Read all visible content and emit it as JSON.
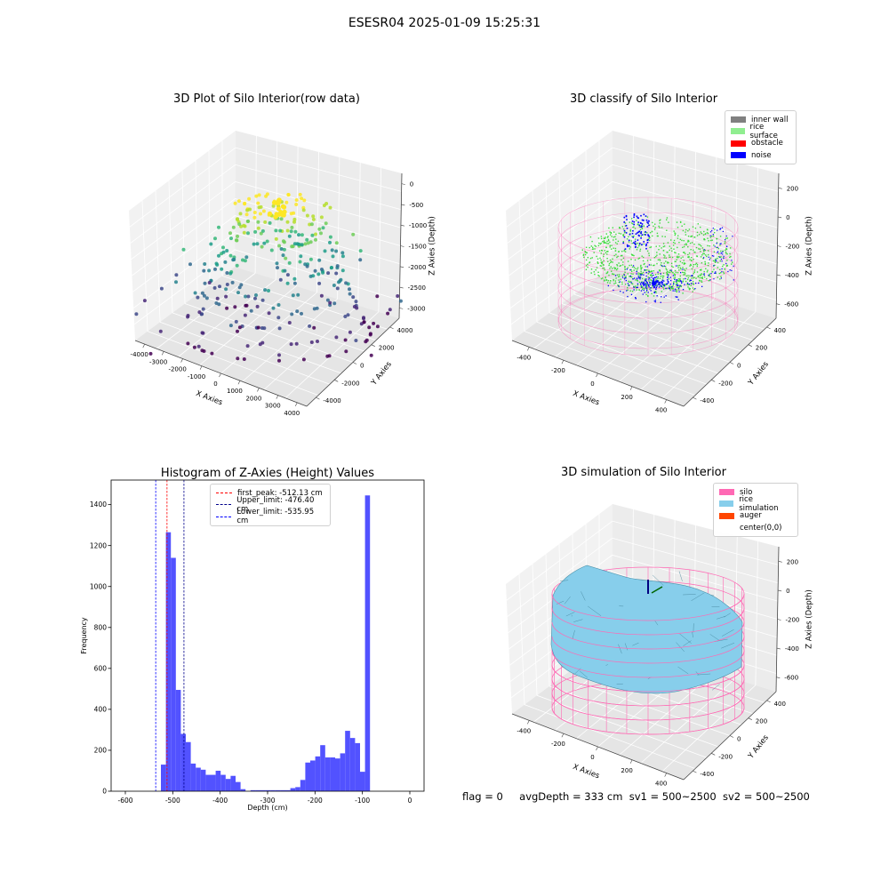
{
  "suptitle": "ESESR04 2025-01-09 15:25:31",
  "panels": {
    "raw": {
      "title": "3D Plot of Silo Interior(row data)",
      "xlabel": "X Axies",
      "ylabel": "Y Axies",
      "zlabel": "Z Axies (Depth)",
      "xticks": [
        "-4000",
        "-3000",
        "-2000",
        "-1000",
        "0",
        "1000",
        "2000",
        "3000",
        "4000"
      ],
      "yticks": [
        "4000",
        "2000",
        "0",
        "-2000",
        "-4000"
      ],
      "zticks": [
        "0",
        "-500",
        "-1000",
        "-1500",
        "-2000",
        "-2500",
        "-3000"
      ]
    },
    "classify": {
      "title": "3D classify of Silo Interior",
      "xlabel": "X Axies",
      "ylabel": "Y Axies",
      "zlabel": "Z Axies (Depth)",
      "xticks": [
        "-400",
        "-200",
        "0",
        "200",
        "400"
      ],
      "yticks": [
        "400",
        "200",
        "0",
        "-200",
        "-400"
      ],
      "zticks": [
        "200",
        "0",
        "-200",
        "-400",
        "-600"
      ],
      "legend": [
        {
          "label": "inner wall",
          "color": "#808080"
        },
        {
          "label": "rice surface",
          "color": "#90ee90"
        },
        {
          "label": "obstacle",
          "color": "#ff0000"
        },
        {
          "label": "noise",
          "color": "#0000ff"
        }
      ]
    },
    "simulation": {
      "title": "3D simulation of Silo Interior",
      "xlabel": "X Axies",
      "ylabel": "Y Axies",
      "zlabel": "Z Axies (Depth)",
      "xticks": [
        "-400",
        "-200",
        "0",
        "200",
        "400"
      ],
      "yticks": [
        "400",
        "200",
        "0",
        "-200",
        "-400"
      ],
      "zticks": [
        "200",
        "0",
        "-200",
        "-400",
        "-600"
      ],
      "legend": [
        {
          "label": "silo",
          "color": "#ff69b4"
        },
        {
          "label": "rice simulation",
          "color": "#87ceeb"
        },
        {
          "label": "auger",
          "color": "#ff4500"
        },
        {
          "label": "center(0,0)",
          "color": "#ffffff"
        }
      ]
    }
  },
  "status": {
    "flag": "flag = 0",
    "avg_depth": "avgDepth = 333 cm",
    "sv1": "sv1 = 500~2500",
    "sv2": "sv2 = 500~2500"
  },
  "chart_data": [
    {
      "type": "histogram",
      "title": "Histogram of Z-Axies (Height) Values",
      "xlabel": "Depth (cm)",
      "ylabel": "Frequency",
      "xlim": [
        -630,
        30
      ],
      "ylim": [
        0,
        1520
      ],
      "xticks": [
        -600,
        -500,
        -400,
        -300,
        -200,
        -100,
        0
      ],
      "yticks": [
        0,
        200,
        400,
        600,
        800,
        1000,
        1200,
        1400
      ],
      "bar_color": "#4c4cff",
      "bin_start": -525,
      "bin_width": 10.5,
      "counts": [
        130,
        1265,
        1140,
        495,
        280,
        240,
        135,
        115,
        105,
        80,
        80,
        100,
        80,
        60,
        75,
        45,
        10,
        0,
        5,
        5,
        5,
        5,
        5,
        5,
        5,
        5,
        15,
        20,
        55,
        140,
        150,
        170,
        225,
        165,
        165,
        160,
        185,
        295,
        260,
        235,
        95,
        1445
      ],
      "vlines": [
        {
          "label": "first_peak: -512.13 cm",
          "x": -512.13,
          "color": "#ff0000"
        },
        {
          "label": "Upper_limit: -476.40 cm",
          "x": -476.4,
          "color": "#00008b"
        },
        {
          "label": "Lower_limit: -535.95 cm",
          "x": -535.95,
          "color": "#0000ff"
        }
      ],
      "legend_position": "upper-center"
    }
  ]
}
